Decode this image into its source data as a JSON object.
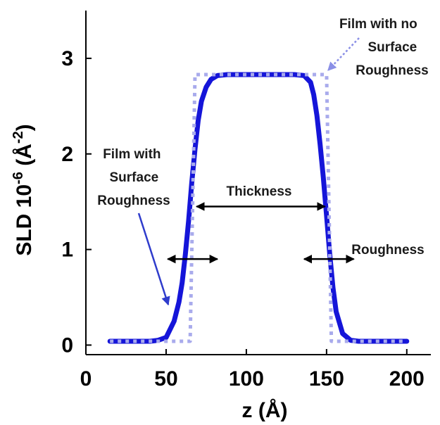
{
  "chart_data": {
    "type": "line",
    "xlabel": "z (Å)",
    "ylabel": {
      "main": "SLD 10",
      "sup1": "-6",
      "mid": " (Å",
      "sup2": "-2",
      "end": ")"
    },
    "xlim": [
      0,
      215
    ],
    "ylim": [
      -0.1,
      3.5
    ],
    "xticks": [
      0,
      50,
      100,
      150,
      200
    ],
    "yticks": [
      0,
      1,
      2,
      3
    ],
    "grid": false,
    "colors": {
      "rough": "#1515d9",
      "sharp": "#a9abec",
      "arrow": "#000000",
      "annotation_arrow": "#2f3ccc",
      "dotted_arrow": "#8a8fe6"
    },
    "series": [
      {
        "style": "solid",
        "x": [
          15,
          40,
          45,
          50,
          55,
          58,
          60,
          62,
          64,
          66,
          68,
          70,
          72,
          75,
          78,
          82,
          88,
          95,
          130,
          136,
          140,
          142,
          144,
          146,
          148,
          150,
          152,
          154,
          156,
          160,
          165,
          170,
          200
        ],
        "y": [
          0.04,
          0.04,
          0.05,
          0.08,
          0.25,
          0.45,
          0.65,
          0.95,
          1.3,
          1.7,
          2.05,
          2.35,
          2.55,
          2.7,
          2.78,
          2.82,
          2.83,
          2.83,
          2.83,
          2.82,
          2.75,
          2.62,
          2.4,
          2.1,
          1.75,
          1.35,
          0.95,
          0.6,
          0.35,
          0.12,
          0.05,
          0.04,
          0.04
        ]
      },
      {
        "style": "dotted",
        "x": [
          15,
          65,
          68,
          150,
          153,
          200
        ],
        "y": [
          0.04,
          0.04,
          2.83,
          2.83,
          0.04,
          0.04
        ]
      }
    ],
    "measurement_arrows": [
      {
        "x_from": 69,
        "x_to": 149,
        "y": 1.45
      },
      {
        "x_from": 51,
        "x_to": 82,
        "y": 0.9
      },
      {
        "x_from": 136,
        "x_to": 167,
        "y": 0.9
      }
    ],
    "annotations": [
      {
        "key": "film_rough",
        "lines": [
          "Film with",
          "Surface",
          "Roughness"
        ]
      },
      {
        "key": "film_sharp",
        "lines": [
          "Film with no",
          "Surface",
          "Roughness"
        ]
      },
      {
        "key": "thickness",
        "lines": [
          "Thickness"
        ]
      },
      {
        "key": "roughness",
        "lines": [
          "Roughness"
        ]
      }
    ]
  }
}
